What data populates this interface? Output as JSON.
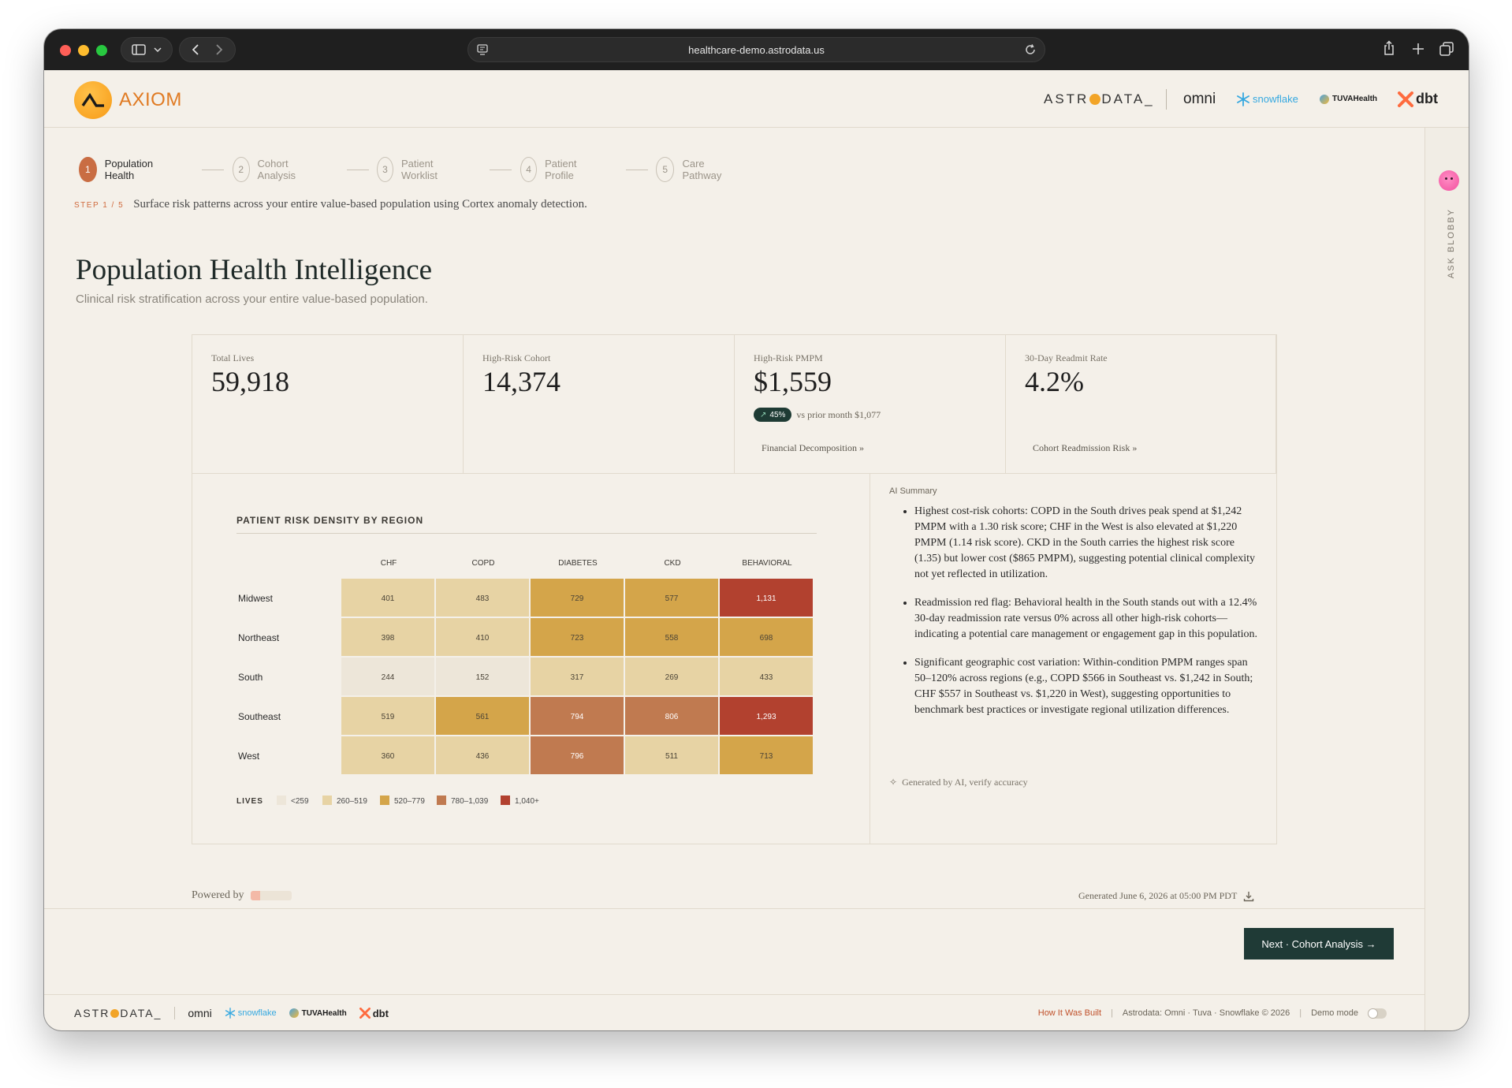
{
  "browser": {
    "url": "healthcare-demo.astrodata.us"
  },
  "header": {
    "app_name": "AXIOM",
    "partners": {
      "astrodata": [
        "ASTR",
        "DATA_"
      ],
      "omni": "omni",
      "snowflake": "snowflake",
      "tuva": "TUVAHealth",
      "dbt": "dbt"
    }
  },
  "rail": {
    "label": "ASK BLOBBY"
  },
  "stepper": {
    "steps": [
      {
        "num": "1",
        "label": "Population Health"
      },
      {
        "num": "2",
        "label": "Cohort Analysis"
      },
      {
        "num": "3",
        "label": "Patient Worklist"
      },
      {
        "num": "4",
        "label": "Patient Profile"
      },
      {
        "num": "5",
        "label": "Care Pathway"
      }
    ],
    "step_tag": "STEP 1 / 5",
    "step_note": "Surface risk patterns across your entire value-based population using Cortex anomaly detection."
  },
  "page": {
    "title": "Population Health Intelligence",
    "subtitle": "Clinical risk stratification across your entire value-based population."
  },
  "kpis": [
    {
      "label": "Total Lives",
      "value": "59,918"
    },
    {
      "label": "High-Risk Cohort",
      "value": "14,374"
    },
    {
      "label": "High-Risk PMPM",
      "value": "$1,559",
      "delta": "45%",
      "delta_text": "vs prior month $1,077",
      "link": "Financial Decomposition »"
    },
    {
      "label": "30-Day Readmit Rate",
      "value": "4.2%",
      "link": "Cohort Readmission Risk »"
    }
  ],
  "chart_data": {
    "type": "heatmap",
    "title": "PATIENT RISK DENSITY BY REGION",
    "columns": [
      "CHF",
      "COPD",
      "DIABETES",
      "CKD",
      "BEHAVIORAL"
    ],
    "rows": [
      "Midwest",
      "Northeast",
      "South",
      "Southeast",
      "West"
    ],
    "values": [
      [
        401,
        483,
        729,
        577,
        1131
      ],
      [
        398,
        410,
        723,
        558,
        698
      ],
      [
        244,
        152,
        317,
        269,
        433
      ],
      [
        519,
        561,
        794,
        806,
        1293
      ],
      [
        360,
        436,
        796,
        511,
        713
      ]
    ],
    "value_labels": [
      [
        "401",
        "483",
        "729",
        "577",
        "1,131"
      ],
      [
        "398",
        "410",
        "723",
        "558",
        "698"
      ],
      [
        "244",
        "152",
        "317",
        "269",
        "433"
      ],
      [
        "519",
        "561",
        "794",
        "806",
        "1,293"
      ],
      [
        "360",
        "436",
        "796",
        "511",
        "713"
      ]
    ],
    "legend_title": "LIVES",
    "legend": [
      {
        "label": "<259",
        "color": "#ede6d9"
      },
      {
        "label": "260–519",
        "color": "#e7d3a4"
      },
      {
        "label": "520–779",
        "color": "#d4a54a"
      },
      {
        "label": "780–1,039",
        "color": "#c07a50"
      },
      {
        "label": "1,040+",
        "color": "#b2412f"
      }
    ]
  },
  "ai_summary": {
    "title": "AI Summary",
    "items": [
      "Highest cost-risk cohorts: COPD in the South drives peak spend at $1,242 PMPM with a 1.30 risk score; CHF in the West is also elevated at $1,220 PMPM (1.14 risk score). CKD in the South carries the highest risk score (1.35) but lower cost ($865 PMPM), suggesting potential clinical complexity not yet reflected in utilization.",
      "Readmission red flag: Behavioral health in the South stands out with a 12.4% 30-day readmission rate versus 0% across all other high-risk cohorts—indicating a potential care management or engagement gap in this population.",
      "Significant geographic cost variation: Within-condition PMPM ranges span 50–120% across regions (e.g., COPD $566 in Southeast vs. $1,242 in South; CHF $557 in Southeast vs. $1,220 in West), suggesting opportunities to benchmark best practices or investigate regional utilization differences."
    ],
    "note": "Generated by AI, verify accuracy"
  },
  "footer": {
    "powered_by": "Powered by",
    "generated": "Generated June 6, 2026 at 05:00 PM PDT",
    "next_button": "Next · Cohort Analysis →",
    "how_built": "How It Was Built",
    "credits": "Astrodata: Omni · Tuva · Snowflake © 2026",
    "demo_mode": "Demo mode"
  }
}
